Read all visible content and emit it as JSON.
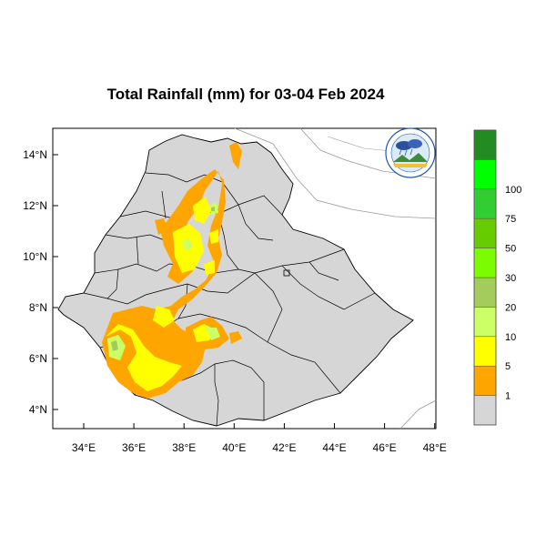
{
  "title": "Total Rainfall (mm) for 03-04 Feb 2024",
  "axes": {
    "x_ticks": [
      "34°E",
      "36°E",
      "38°E",
      "40°E",
      "42°E",
      "44°E",
      "46°E",
      "48°E"
    ],
    "y_ticks": [
      "14°N",
      "12°N",
      "10°N",
      "8°N",
      "6°N",
      "4°N"
    ]
  },
  "colorbar": {
    "labels": [
      "1",
      "5",
      "10",
      "20",
      "30",
      "50",
      "75",
      "100"
    ],
    "colors": [
      "#d6d6d6",
      "#ffa500",
      "#ffff00",
      "#ccff66",
      "#a3cc5c",
      "#7cfc00",
      "#66cc00",
      "#32cd32",
      "#00ff00",
      "#228b22"
    ]
  },
  "logo": {
    "icon": "ethiopian-meteorology-institute-logo"
  },
  "map": {
    "region": "Ethiopia",
    "land_color": "#d6d6d6",
    "boundary_color": "#000000"
  }
}
